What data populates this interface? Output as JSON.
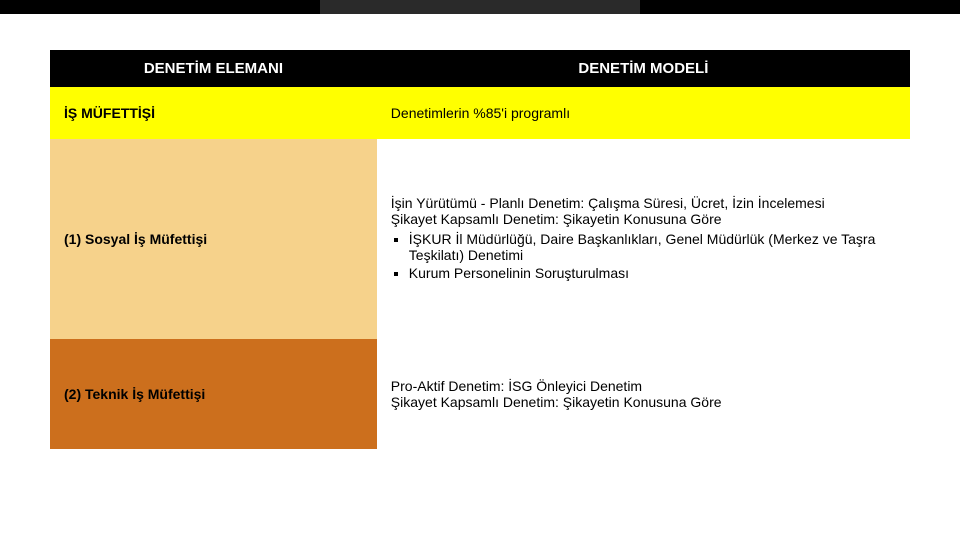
{
  "accent": {
    "seg_colors": [
      "#000000",
      "#2a2a2a",
      "#000000"
    ]
  },
  "table": {
    "header": {
      "bg": "#000000",
      "fg": "#ffffff",
      "col1": "DENETİM ELEMANI",
      "col2": "DENETİM MODELİ"
    },
    "row1": {
      "left_bg": "#ffff00",
      "right_bg": "#ffff00",
      "left": "İŞ MÜFETTİŞİ",
      "right": "Denetimlerin %85'i programlı"
    },
    "row2": {
      "left_bg": "#f6d28b",
      "right_bg": "#ffffff",
      "left": "(1) Sosyal İş Müfettişi",
      "right_line1": "İşin Yürütümü - Planlı Denetim: Çalışma Süresi, Ücret, İzin İncelemesi",
      "right_line2": "Şikayet Kapsamlı Denetim: Şikayetin Konusuna Göre",
      "bullet1": "İŞKUR İl Müdürlüğü, Daire Başkanlıkları, Genel Müdürlük (Merkez ve Taşra Teşkilatı) Denetimi",
      "bullet2": "Kurum Personelinin Soruşturulması"
    },
    "row3": {
      "left_bg": "#cc6f1d",
      "right_bg": "#ffffff",
      "left": "(2) Teknik İş Müfettişi",
      "right_line1": "Pro-Aktif Denetim: İSG Önleyici Denetim",
      "right_line2": "Şikayet Kapsamlı Denetim: Şikayetin Konusuna Göre"
    }
  }
}
